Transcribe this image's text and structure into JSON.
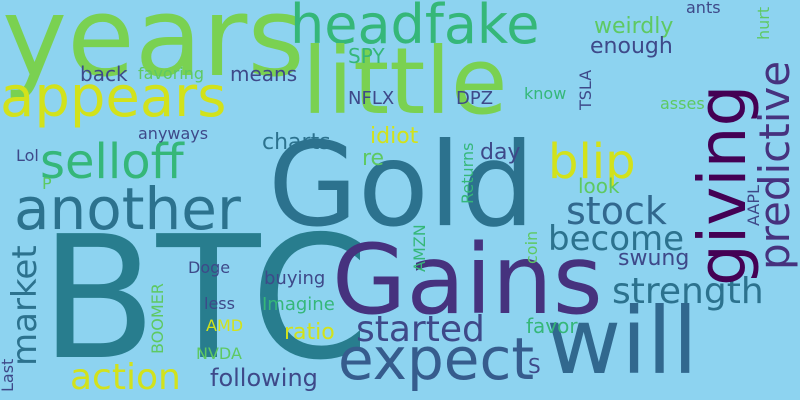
{
  "cloud": {
    "background": "#8dd3f0",
    "words": {
      "years": "years",
      "headfake": "headfake",
      "little": "little",
      "appears": "appears",
      "selloff": "selloff",
      "gold": "Gold",
      "blip": "blip",
      "another": "another",
      "stock": "stock",
      "become": "become",
      "btc": "BTC",
      "gains": "Gains",
      "strength": "strength",
      "started": "started",
      "will": "will",
      "expect": "expect",
      "action": "action",
      "following": "following",
      "weirdly": "weirdly",
      "enough": "enough",
      "spy": "SPY",
      "back": "back",
      "favoring": "favoring",
      "means": "means",
      "nflx": "NFLX",
      "dpz": "DPZ",
      "know": "know",
      "anyways": "anyways",
      "charts": "charts",
      "idiot": "idiot",
      "re": "re",
      "day": "day",
      "lol": "Lol",
      "p": "P",
      "look": "look",
      "asses": "asses",
      "ants": "ants",
      "swung": "swung",
      "doge": "Doge",
      "buying": "buying",
      "less": "less",
      "imagine": "Imagine",
      "ratio": "ratio",
      "amd": "AMD",
      "nvda": "NVDA",
      "favor": "favor",
      "s": "S",
      "giving": "giving",
      "predictive": "predictive",
      "market": "market",
      "tsla": "TSLA",
      "returns": "Returns",
      "aapl": "AAPL",
      "hurt": "hurt",
      "amzn": "AMZN",
      "coin": "coin",
      "boomer": "BOOMER",
      "last": "Last"
    }
  }
}
